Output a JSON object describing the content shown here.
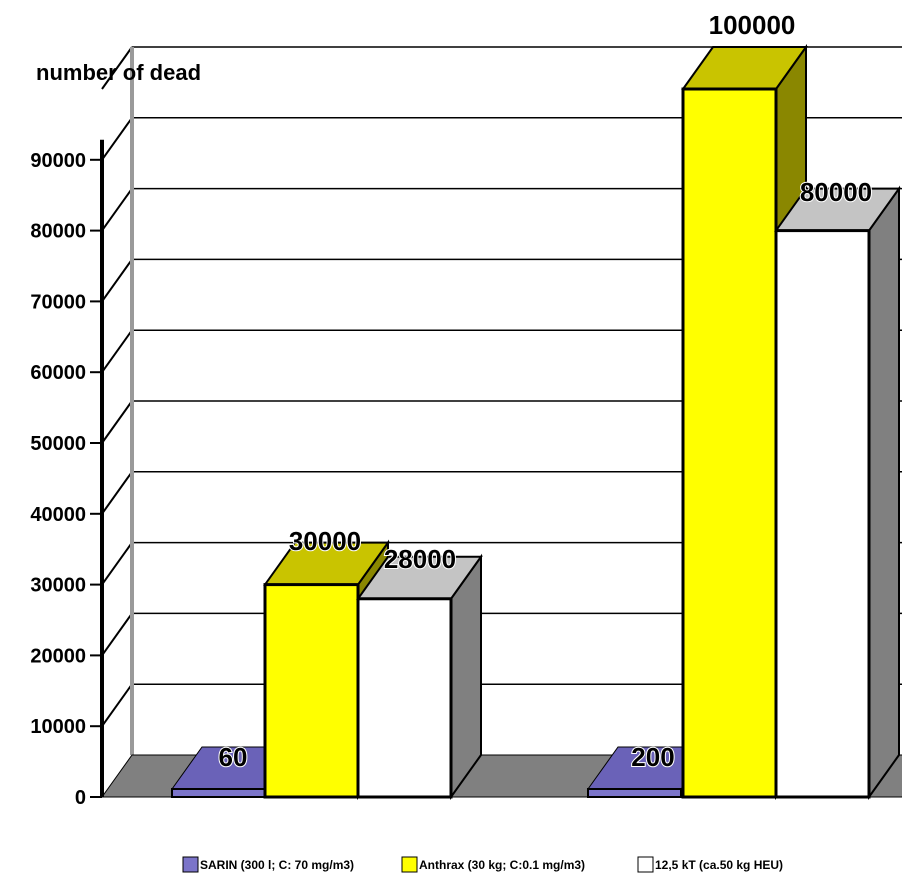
{
  "chart_data": {
    "type": "bar",
    "title": "",
    "xlabel": "",
    "ylabel": "number of dead",
    "ylim": [
      0,
      100000
    ],
    "y_ticks": [
      "0",
      "10000",
      "20000",
      "30000",
      "40000",
      "50000",
      "60000",
      "70000",
      "80000",
      "90000"
    ],
    "categories": [
      "",
      ""
    ],
    "series": [
      {
        "name": "SARIN (300 l; C: 70 mg/m3)",
        "values": [
          60,
          200
        ],
        "labels": [
          "60",
          "200"
        ]
      },
      {
        "name": "Anthrax (30 kg; C:0.1 mg/m3)",
        "values": [
          30000,
          100000
        ],
        "labels": [
          "30000",
          "100000"
        ]
      },
      {
        "name": "12,5 kT (ca.50 kg HEU)",
        "values": [
          28000,
          80000
        ],
        "labels": [
          "28000",
          "80000"
        ]
      }
    ],
    "grid": true,
    "legend_position": "bottom",
    "style": "3d",
    "colors": {
      "sarin_front": "#7b74c9",
      "sarin_top": "#6a62b8",
      "anthrax_front": "#ffff00",
      "anthrax_top": "#c9c400",
      "anthrax_side": "#8a8700",
      "heu_front": "#ffffff",
      "heu_top": "#c4c4c4",
      "heu_side": "#808080",
      "floor": "#808080",
      "grid": "#000000",
      "wall_axis": "#9a9a9a"
    }
  }
}
